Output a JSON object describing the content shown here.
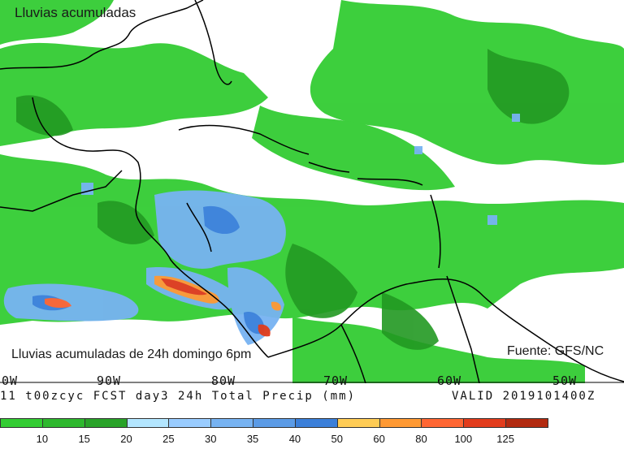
{
  "map": {
    "title": "Lluvias acumuladas",
    "caption": "Lluvias acumuladas de 24h domingo 6pm",
    "source": "Fuente: GFS/NC",
    "land_color": "#ffffff",
    "coast_color": "#000000"
  },
  "header": {
    "left_text": "11 t00zcyc FCST day3 24h Total Precip (mm)",
    "valid_text": "VALID 2019101400Z",
    "longitudes": [
      "0W",
      "90W",
      "80W",
      "70W",
      "60W",
      "50W"
    ]
  },
  "legend": {
    "bins": [
      {
        "color": "#33cc33"
      },
      {
        "color": "#2eb82e"
      },
      {
        "color": "#29a329"
      },
      {
        "color": "#b3e6ff"
      },
      {
        "color": "#99ccff"
      },
      {
        "color": "#77b3f2"
      },
      {
        "color": "#5b9be6"
      },
      {
        "color": "#3b7fd9"
      },
      {
        "color": "#ffcc55"
      },
      {
        "color": "#ff9933"
      },
      {
        "color": "#ff6633"
      },
      {
        "color": "#e23c1c"
      },
      {
        "color": "#b22a10"
      }
    ],
    "ticks": [
      "10",
      "15",
      "20",
      "25",
      "30",
      "35",
      "40",
      "50",
      "60",
      "80",
      "100",
      "125"
    ]
  }
}
